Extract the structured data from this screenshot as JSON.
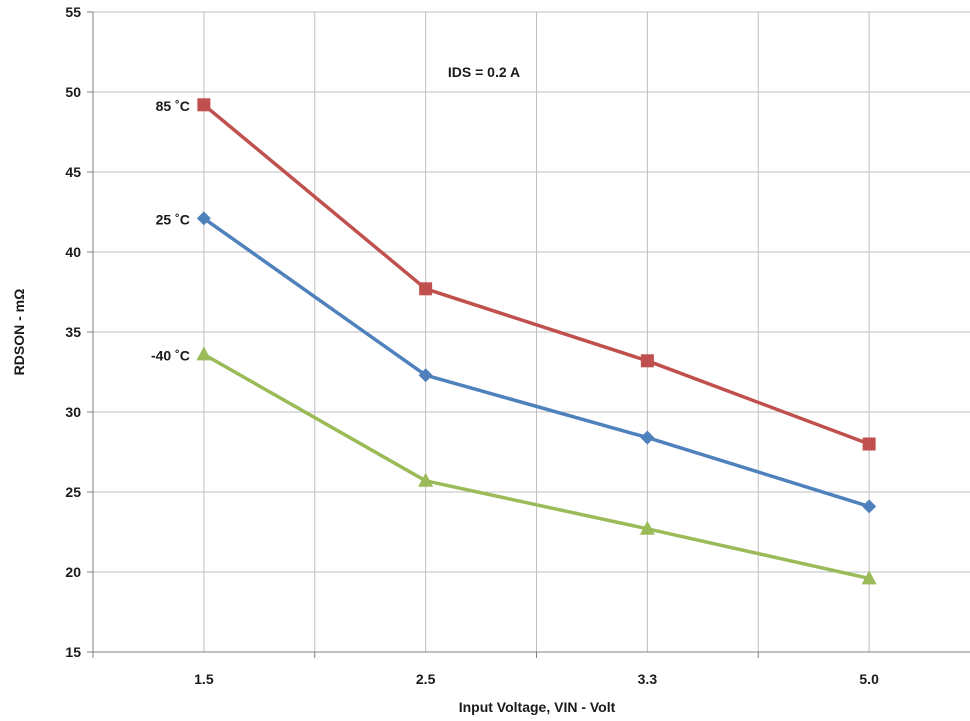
{
  "chart_data": {
    "type": "line",
    "title": "",
    "xlabel": "Input Voltage, VIN - Volt",
    "ylabel": "RDSON - mΩ",
    "categories": [
      "1.5",
      "2.5",
      "3.3",
      "5.0"
    ],
    "ylim": [
      15,
      55
    ],
    "yticks": [
      15,
      20,
      25,
      30,
      35,
      40,
      45,
      50,
      55
    ],
    "grid": true,
    "annotation": "IDS = 0.2 A",
    "series": [
      {
        "name": "85 ˚C",
        "values": [
          49.2,
          37.7,
          33.2,
          28.0
        ],
        "color": "#c0504d",
        "marker": "square"
      },
      {
        "name": "25 ˚C",
        "values": [
          42.1,
          32.3,
          28.4,
          24.1
        ],
        "color": "#4f81bd",
        "marker": "diamond"
      },
      {
        "name": "-40 ˚C",
        "values": [
          33.6,
          25.7,
          22.7,
          19.6
        ],
        "color": "#9bbb59",
        "marker": "triangle"
      }
    ]
  }
}
